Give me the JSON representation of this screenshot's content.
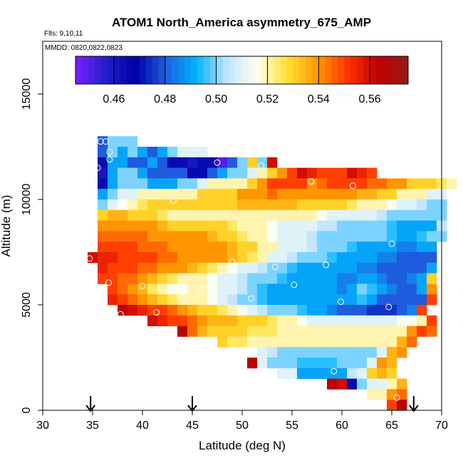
{
  "chart_data": {
    "type": "heatmap",
    "title": "ATOM1 North_America asymmetry_675_AMP",
    "subtitle_flights": "Flts: 9,10,11",
    "subtitle_dates": "MMDD: 0820,0822,0823",
    "xlabel": "Latitude (deg N)",
    "ylabel": "Altitude (m)",
    "xlim": [
      30,
      70
    ],
    "ylim": [
      0,
      17500
    ],
    "x_ticks": [
      "30",
      "35",
      "40",
      "45",
      "50",
      "55",
      "60",
      "65",
      "70"
    ],
    "y_ticks": [
      "0",
      "5000",
      "10000",
      "15000"
    ],
    "colorbar": {
      "range": [
        0.445,
        0.575
      ],
      "ticks": [
        "0.46",
        "0.48",
        "0.50",
        "0.52",
        "0.54",
        "0.56"
      ],
      "colors": [
        "#7b1fff",
        "#2020c8",
        "#0000a8",
        "#1f5fe0",
        "#00b4ff",
        "#bfe4ff",
        "#fffff0",
        "#ffe033",
        "#ff9900",
        "#ff3300",
        "#c00000",
        "#9a1a1a"
      ]
    },
    "cell_size": {
      "lat": 1.0,
      "alt_m": 500
    },
    "rows": [
      {
        "alt": 12750,
        "lat_start": 35.5,
        "values": [
          0.48,
          0.5,
          0.5,
          0.5
        ]
      },
      {
        "alt": 12250,
        "lat_start": 35.5,
        "values": [
          0.48,
          0.5,
          0.49,
          0.5,
          0.49,
          0.48,
          0.49,
          0.5,
          0.51,
          0.51,
          0.51
        ]
      },
      {
        "alt": 11750,
        "lat_start": 35.5,
        "values": [
          0.47,
          0.49,
          0.49,
          0.48,
          0.48,
          0.49,
          0.48,
          0.47,
          0.465,
          0.46,
          0.465,
          0.47,
          0.45,
          0.48,
          0.5,
          0.53,
          0.5,
          0.56
        ]
      },
      {
        "alt": 11250,
        "lat_start": 35.5,
        "values": [
          0.46,
          0.49,
          0.5,
          0.5,
          0.49,
          0.48,
          0.48,
          0.48,
          0.48,
          0.47,
          0.47,
          0.48,
          0.49,
          0.5,
          0.5,
          0.51,
          0.52,
          0.53,
          0.54,
          0.55,
          0.56,
          0.555,
          0.55,
          0.55,
          0.55,
          0.56,
          0.555,
          0.55
        ]
      },
      {
        "alt": 10750,
        "lat_start": 35.5,
        "values": [
          0.47,
          0.49,
          0.5,
          0.5,
          0.5,
          0.49,
          0.49,
          0.49,
          0.5,
          0.5,
          0.51,
          0.52,
          0.52,
          0.52,
          0.52,
          0.53,
          0.54,
          0.55,
          0.55,
          0.55,
          0.55,
          0.54,
          0.545,
          0.55,
          0.55,
          0.55,
          0.55,
          0.545,
          0.545,
          0.54,
          0.54,
          0.53,
          0.53,
          0.53,
          0.525,
          0.52
        ]
      },
      {
        "alt": 10250,
        "lat_start": 35.5,
        "values": [
          0.49,
          0.5,
          0.51,
          0.51,
          0.52,
          0.52,
          0.52,
          0.52,
          0.52,
          0.52,
          0.53,
          0.53,
          0.53,
          0.53,
          0.54,
          0.54,
          0.54,
          0.545,
          0.54,
          0.54,
          0.54,
          0.54,
          0.54,
          0.54,
          0.54,
          0.54,
          0.535,
          0.535,
          0.53,
          0.53,
          0.52,
          0.52,
          0.52,
          0.51,
          0.51
        ]
      },
      {
        "alt": 9750,
        "lat_start": 35.5,
        "values": [
          0.5,
          0.51,
          0.515,
          0.52,
          0.525,
          0.53,
          0.53,
          0.53,
          0.53,
          0.53,
          0.53,
          0.53,
          0.53,
          0.53,
          0.535,
          0.535,
          0.535,
          0.535,
          0.535,
          0.535,
          0.53,
          0.53,
          0.53,
          0.53,
          0.53,
          0.525,
          0.52,
          0.52,
          0.52,
          0.515,
          0.51,
          0.51,
          0.505,
          0.5,
          0.5
        ]
      },
      {
        "alt": 9250,
        "lat_start": 35.5,
        "values": [
          0.53,
          0.535,
          0.535,
          0.53,
          0.53,
          0.53,
          0.525,
          0.52,
          0.52,
          0.52,
          0.52,
          0.52,
          0.52,
          0.52,
          0.52,
          0.52,
          0.52,
          0.52,
          0.52,
          0.52,
          0.52,
          0.52,
          0.515,
          0.51,
          0.51,
          0.51,
          0.51,
          0.51,
          0.505,
          0.5,
          0.5,
          0.5,
          0.5,
          0.5,
          0.5
        ]
      },
      {
        "alt": 8750,
        "lat_start": 35.5,
        "values": [
          0.54,
          0.54,
          0.54,
          0.54,
          0.54,
          0.54,
          0.535,
          0.53,
          0.53,
          0.53,
          0.53,
          0.53,
          0.53,
          0.525,
          0.52,
          0.52,
          0.52,
          0.515,
          0.51,
          0.51,
          0.51,
          0.51,
          0.505,
          0.505,
          0.5,
          0.5,
          0.5,
          0.5,
          0.5,
          0.495,
          0.49,
          0.49,
          0.49,
          0.49,
          0.505
        ]
      },
      {
        "alt": 8250,
        "lat_start": 35.5,
        "values": [
          0.545,
          0.545,
          0.545,
          0.545,
          0.545,
          0.54,
          0.54,
          0.54,
          0.54,
          0.54,
          0.54,
          0.535,
          0.53,
          0.53,
          0.525,
          0.52,
          0.52,
          0.515,
          0.51,
          0.51,
          0.51,
          0.505,
          0.5,
          0.5,
          0.5,
          0.5,
          0.5,
          0.5,
          0.5,
          0.495,
          0.49,
          0.49,
          0.495,
          0.5,
          0.5
        ]
      },
      {
        "alt": 7750,
        "lat_start": 35.5,
        "values": [
          0.55,
          0.55,
          0.55,
          0.55,
          0.545,
          0.545,
          0.545,
          0.54,
          0.54,
          0.54,
          0.54,
          0.54,
          0.54,
          0.535,
          0.53,
          0.53,
          0.52,
          0.52,
          0.51,
          0.51,
          0.51,
          0.505,
          0.5,
          0.5,
          0.5,
          0.495,
          0.49,
          0.49,
          0.49,
          0.49,
          0.485,
          0.485,
          0.49,
          0.49
        ]
      },
      {
        "alt": 7250,
        "lat_start": 34.5,
        "values": [
          0.56,
          0.555,
          0.555,
          0.55,
          0.55,
          0.55,
          0.55,
          0.545,
          0.545,
          0.54,
          0.54,
          0.54,
          0.54,
          0.54,
          0.535,
          0.53,
          0.525,
          0.52,
          0.51,
          0.51,
          0.505,
          0.5,
          0.5,
          0.5,
          0.495,
          0.49,
          0.49,
          0.49,
          0.49,
          0.485,
          0.485,
          0.48,
          0.48,
          0.48,
          0.48
        ]
      },
      {
        "alt": 6750,
        "lat_start": 35.5,
        "values": [
          0.555,
          0.55,
          0.55,
          0.55,
          0.545,
          0.545,
          0.54,
          0.54,
          0.54,
          0.535,
          0.53,
          0.525,
          0.52,
          0.515,
          0.51,
          0.51,
          0.505,
          0.5,
          0.5,
          0.495,
          0.49,
          0.49,
          0.49,
          0.49,
          0.49,
          0.49,
          0.485,
          0.485,
          0.48,
          0.48,
          0.48,
          0.48,
          0.48,
          0.49
        ]
      },
      {
        "alt": 6250,
        "lat_start": 35.5,
        "values": [
          0.55,
          0.55,
          0.545,
          0.545,
          0.54,
          0.535,
          0.53,
          0.525,
          0.52,
          0.52,
          0.52,
          0.515,
          0.51,
          0.51,
          0.505,
          0.5,
          0.5,
          0.5,
          0.495,
          0.49,
          0.49,
          0.49,
          0.49,
          0.49,
          0.485,
          0.485,
          0.49,
          0.49,
          0.485,
          0.48,
          0.48,
          0.485,
          0.49,
          0.53
        ]
      },
      {
        "alt": 5750,
        "lat_start": 36.5,
        "values": [
          0.55,
          0.545,
          0.54,
          0.535,
          0.525,
          0.52,
          0.515,
          0.515,
          0.52,
          0.52,
          0.515,
          0.51,
          0.51,
          0.505,
          0.5,
          0.495,
          0.49,
          0.49,
          0.49,
          0.49,
          0.49,
          0.49,
          0.49,
          0.485,
          0.49,
          0.5,
          0.495,
          0.49,
          0.485,
          0.48,
          0.48,
          0.49,
          0.54
        ]
      },
      {
        "alt": 5250,
        "lat_start": 36.5,
        "values": [
          0.555,
          0.55,
          0.545,
          0.54,
          0.535,
          0.53,
          0.525,
          0.52,
          0.52,
          0.52,
          0.515,
          0.51,
          0.505,
          0.5,
          0.5,
          0.495,
          0.49,
          0.49,
          0.49,
          0.49,
          0.49,
          0.49,
          0.49,
          0.49,
          0.49,
          0.495,
          0.49,
          0.48,
          0.48,
          0.48,
          0.48,
          0.48,
          0.55
        ]
      },
      {
        "alt": 4750,
        "lat_start": 37.5,
        "values": [
          0.565,
          0.56,
          0.555,
          0.55,
          0.55,
          0.545,
          0.54,
          0.535,
          0.53,
          0.53,
          0.525,
          0.52,
          0.515,
          0.51,
          0.505,
          0.5,
          0.5,
          0.5,
          0.495,
          0.49,
          0.49,
          0.485,
          0.48,
          0.48,
          0.48,
          0.475,
          0.475,
          0.475,
          0.48,
          0.485,
          0.55
        ]
      },
      {
        "alt": 4250,
        "lat_start": 40.5,
        "values": [
          0.56,
          0.555,
          0.55,
          0.55,
          0.545,
          0.54,
          0.535,
          0.535,
          0.535,
          0.53,
          0.53,
          0.53,
          0.525,
          0.52,
          0.52,
          0.515,
          0.51,
          0.51,
          0.51,
          0.51,
          0.51,
          0.51,
          0.51,
          0.51,
          0.51,
          0.515,
          0.515,
          0.52,
          0.55
        ]
      },
      {
        "alt": 3750,
        "lat_start": 43.5,
        "values": [
          0.565,
          0.545,
          0.535,
          0.53,
          0.53,
          0.53,
          0.53,
          0.525,
          0.525,
          0.525,
          0.52,
          0.52,
          0.52,
          0.52,
          0.52,
          0.52,
          0.52,
          0.52,
          0.52,
          0.52,
          0.52,
          0.52,
          0.52,
          0.54,
          0.55,
          0.545
        ]
      },
      {
        "alt": 3250,
        "lat_start": 47.5,
        "values": [
          0.53,
          0.525,
          0.525,
          0.52,
          0.52,
          0.52,
          0.52,
          0.52,
          0.52,
          0.52,
          0.52,
          0.52,
          0.52,
          0.52,
          0.52,
          0.52,
          0.52,
          0.52,
          0.535,
          0.545
        ]
      },
      {
        "alt": 2750,
        "lat_start": 51.5,
        "values": [
          0.51,
          0.505,
          0.5,
          0.5,
          0.5,
          0.5,
          0.5,
          0.5,
          0.5,
          0.5,
          0.5,
          0.5,
          0.51,
          0.535,
          0.54
        ]
      },
      {
        "alt": 2250,
        "lat_start": 50.5,
        "values": [
          0.565,
          0.51,
          0.5,
          0.5,
          0.5,
          0.495,
          0.495,
          0.495,
          0.495,
          0.5,
          0.5,
          0.5,
          0.51,
          0.54,
          0.535
        ]
      },
      {
        "alt": 1750,
        "lat_start": 53.5,
        "values": [
          0.51,
          0.51,
          0.49,
          0.49,
          0.49,
          0.49,
          0.49,
          0.505,
          0.51,
          0.53,
          0.535,
          0.53
        ]
      },
      {
        "alt": 1250,
        "lat_start": 58.5,
        "values": [
          0.565,
          0.56,
          0.47,
          0.5,
          0.51,
          0.51,
          0.52,
          0.535
        ]
      },
      {
        "alt": 750,
        "lat_start": 62.5,
        "values": [
          0.52,
          0.52,
          0.54,
          0.545
        ]
      },
      {
        "alt": 250,
        "lat_start": 64.5,
        "values": [
          0.55,
          0.565
        ]
      }
    ],
    "airports": [
      {
        "lat": 35.8,
        "alt": 12750
      },
      {
        "lat": 36.3,
        "alt": 12750
      },
      {
        "lat": 36.7,
        "alt": 12250
      },
      {
        "lat": 36.7,
        "alt": 11900
      },
      {
        "lat": 35.5,
        "alt": 11500
      },
      {
        "lat": 47.5,
        "alt": 11750
      },
      {
        "lat": 51.9,
        "alt": 11600
      },
      {
        "lat": 56.9,
        "alt": 10850
      },
      {
        "lat": 61.1,
        "alt": 10650
      },
      {
        "lat": 43.1,
        "alt": 9950
      },
      {
        "lat": 39.0,
        "alt": 9700
      },
      {
        "lat": 65.0,
        "alt": 7900
      },
      {
        "lat": 34.7,
        "alt": 7200
      },
      {
        "lat": 49.0,
        "alt": 7050
      },
      {
        "lat": 53.3,
        "alt": 6800
      },
      {
        "lat": 58.4,
        "alt": 6900
      },
      {
        "lat": 36.6,
        "alt": 6050
      },
      {
        "lat": 40.0,
        "alt": 5900
      },
      {
        "lat": 45.9,
        "alt": 5750
      },
      {
        "lat": 55.2,
        "alt": 5950
      },
      {
        "lat": 50.9,
        "alt": 5300
      },
      {
        "lat": 59.9,
        "alt": 5150
      },
      {
        "lat": 64.7,
        "alt": 4900
      },
      {
        "lat": 41.4,
        "alt": 4650
      },
      {
        "lat": 37.8,
        "alt": 4550
      },
      {
        "lat": 59.2,
        "alt": 1850
      },
      {
        "lat": 65.5,
        "alt": 600
      }
    ],
    "arrows_lat": [
      34.8,
      45.0,
      67.2
    ]
  }
}
